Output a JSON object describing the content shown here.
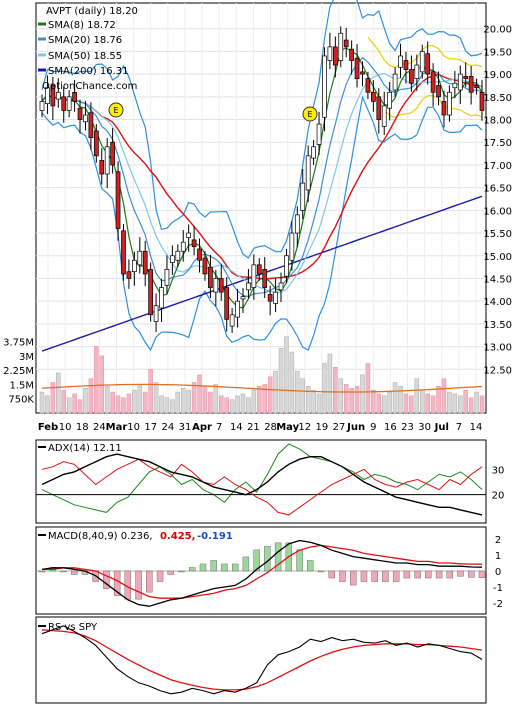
{
  "chart_data": {
    "type": "candlestick",
    "price_panel": {
      "ticker_label": "AVPT (daily) 18.20",
      "watermark": "OptionChance.com",
      "ylim": [
        12.0,
        20.5
      ],
      "y_ticks": [
        "12.50",
        "13.00",
        "13.50",
        "14.00",
        "14.50",
        "15.00",
        "15.50",
        "16.00",
        "16.50",
        "17.00",
        "17.50",
        "18.00",
        "18.50",
        "19.00",
        "19.50",
        "20.00"
      ],
      "y_tick_values": [
        12.5,
        13.0,
        13.5,
        14.0,
        14.5,
        15.0,
        15.5,
        16.0,
        16.5,
        17.0,
        17.5,
        18.0,
        18.5,
        19.0,
        19.5,
        20.0
      ],
      "legend": [
        {
          "label": "SMA(8) 18.72",
          "color": "#1a7a1a"
        },
        {
          "label": "SMA(20) 18.76",
          "color": "#3b8fd6"
        },
        {
          "label": "SMA(50) 18.55",
          "color": "#7fc6ea"
        },
        {
          "label": "SMA(200) 16.31",
          "color": "#1a1aaa"
        }
      ],
      "earnings_markers": [
        {
          "label": "E",
          "date": "Feb 20"
        },
        {
          "label": "E",
          "date": "May 7"
        }
      ],
      "closes": [
        18.4,
        18.7,
        18.3,
        18.6,
        18.2,
        18.5,
        18.4,
        18.0,
        18.1,
        17.6,
        17.2,
        16.8,
        17.4,
        17.0,
        15.6,
        14.6,
        14.5,
        14.9,
        15.1,
        14.6,
        13.7,
        13.9,
        14.3,
        14.7,
        15.0,
        15.1,
        15.3,
        15.5,
        15.2,
        14.9,
        14.6,
        14.3,
        14.5,
        14.2,
        13.6,
        13.7,
        14.0,
        14.1,
        14.4,
        14.8,
        14.6,
        14.3,
        14.0,
        14.2,
        14.4,
        15.0,
        15.5,
        15.9,
        16.6,
        17.2,
        17.4,
        17.9,
        19.4,
        19.6,
        19.2,
        19.9,
        19.6,
        19.3,
        18.9,
        19.0,
        18.6,
        18.4,
        18.0,
        18.3,
        18.6,
        19.0,
        19.4,
        19.1,
        18.8,
        19.2,
        19.5,
        19.0,
        18.6,
        18.5,
        18.1,
        18.6,
        18.8,
        19.0,
        18.9,
        18.6,
        18.7,
        18.2
      ],
      "sma8_end": 18.72,
      "sma20_end": 18.76,
      "sma50_end": 18.55,
      "sma200_end": 16.31
    },
    "volume_panel": {
      "y_ticks": [
        "3.75M",
        "3M",
        "2.25M",
        "1.5M",
        "750K"
      ],
      "y_tick_values": [
        3750000,
        3000000,
        2250000,
        1500000,
        750000
      ]
    },
    "x_axis": {
      "labels": [
        "Feb",
        "10",
        "18",
        "24",
        "Mar",
        "10",
        "17",
        "24",
        "31",
        "Apr",
        "7",
        "14",
        "21",
        "28",
        "May",
        "12",
        "19",
        "27",
        "Jun",
        "9",
        "16",
        "23",
        "30",
        "Jul",
        "7",
        "14"
      ]
    },
    "adx_panel": {
      "label": "ADX(14) 12.11",
      "ylim": [
        10,
        40
      ],
      "y_ticks": [
        "30",
        "20"
      ],
      "y_tick_values": [
        30,
        20
      ],
      "adx": [
        24,
        26,
        28,
        29,
        31,
        33,
        35,
        36,
        35,
        34,
        33,
        31,
        29,
        28,
        27,
        25,
        23,
        22,
        21,
        20,
        22,
        25,
        29,
        32,
        34,
        35,
        35,
        33,
        31,
        28,
        25,
        23,
        21,
        19,
        18,
        17,
        16,
        15,
        15,
        14,
        13,
        12
      ],
      "plus_di": [
        22,
        20,
        18,
        16,
        15,
        14,
        13,
        17,
        19,
        24,
        29,
        31,
        28,
        24,
        26,
        22,
        20,
        17,
        22,
        25,
        21,
        28,
        36,
        40,
        38,
        35,
        34,
        33,
        31,
        29,
        26,
        28,
        27,
        25,
        24,
        22,
        25,
        28,
        27,
        29,
        26,
        22
      ],
      "minus_di": [
        30,
        31,
        33,
        32,
        28,
        24,
        27,
        30,
        32,
        34,
        31,
        29,
        27,
        32,
        29,
        25,
        24,
        27,
        24,
        22,
        19,
        17,
        13,
        12,
        15,
        18,
        21,
        24,
        26,
        28,
        30,
        26,
        24,
        23,
        25,
        26,
        24,
        22,
        26,
        24,
        28,
        31
      ]
    },
    "macd_panel": {
      "label": "MACD(8,40,9) 0.236,",
      "value_signal": "0.425,",
      "value_hist": "-0.191",
      "color_signal": "#dd0000",
      "color_hist": "#1a4fbf",
      "ylim": [
        -2.5,
        2.5
      ],
      "y_ticks": [
        "2",
        "1",
        "0",
        "-1",
        "-2"
      ],
      "y_tick_values": [
        2,
        1,
        0,
        -1,
        -2
      ],
      "macd": [
        0.1,
        0.2,
        0.2,
        0.1,
        0.0,
        -0.3,
        -0.8,
        -1.3,
        -1.8,
        -2.1,
        -2.2,
        -2.0,
        -1.8,
        -1.7,
        -1.5,
        -1.3,
        -1.1,
        -1.0,
        -0.9,
        -0.5,
        0.1,
        0.6,
        1.2,
        1.7,
        1.9,
        1.8,
        1.6,
        1.3,
        1.1,
        0.9,
        0.8,
        0.7,
        0.6,
        0.5,
        0.5,
        0.4,
        0.4,
        0.3,
        0.3,
        0.3,
        0.25,
        0.236
      ],
      "signal": [
        0.1,
        0.1,
        0.2,
        0.2,
        0.1,
        0.0,
        -0.3,
        -0.6,
        -1.0,
        -1.3,
        -1.6,
        -1.7,
        -1.7,
        -1.7,
        -1.6,
        -1.5,
        -1.4,
        -1.2,
        -1.1,
        -0.9,
        -0.5,
        -0.1,
        0.4,
        0.9,
        1.3,
        1.5,
        1.6,
        1.5,
        1.4,
        1.3,
        1.1,
        1.0,
        0.9,
        0.8,
        0.7,
        0.6,
        0.6,
        0.5,
        0.5,
        0.45,
        0.43,
        0.425
      ]
    },
    "rs_panel": {
      "label": "RS vs SPY",
      "rs": [
        0.85,
        0.9,
        0.95,
        0.88,
        0.8,
        0.7,
        0.55,
        0.4,
        0.3,
        0.22,
        0.18,
        0.12,
        0.08,
        0.1,
        0.15,
        0.12,
        0.08,
        0.12,
        0.1,
        0.15,
        0.22,
        0.45,
        0.58,
        0.62,
        0.68,
        0.78,
        0.75,
        0.8,
        0.76,
        0.78,
        0.74,
        0.73,
        0.76,
        0.7,
        0.73,
        0.68,
        0.72,
        0.7,
        0.66,
        0.62,
        0.6,
        0.52
      ],
      "rs_ma": [
        0.9,
        0.89,
        0.88,
        0.86,
        0.82,
        0.76,
        0.68,
        0.6,
        0.52,
        0.45,
        0.38,
        0.32,
        0.26,
        0.22,
        0.19,
        0.16,
        0.14,
        0.13,
        0.13,
        0.14,
        0.17,
        0.22,
        0.29,
        0.36,
        0.43,
        0.5,
        0.56,
        0.61,
        0.65,
        0.68,
        0.7,
        0.71,
        0.72,
        0.72,
        0.72,
        0.71,
        0.71,
        0.7,
        0.69,
        0.68,
        0.66,
        0.64
      ]
    }
  }
}
